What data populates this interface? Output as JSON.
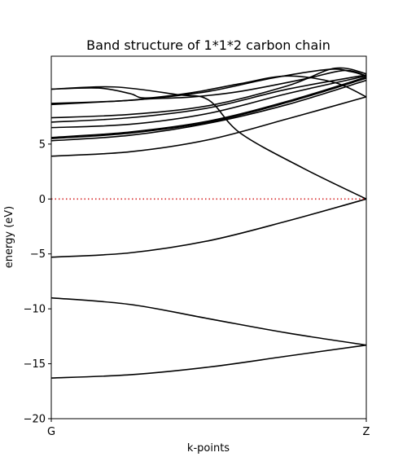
{
  "chart_data": {
    "type": "line",
    "title": "Band structure of 1*1*2 carbon chain",
    "xlabel": "k-points",
    "ylabel": "energy (eV)",
    "xlim": [
      0,
      1
    ],
    "ylim": [
      -20,
      13
    ],
    "x_ticks": [
      {
        "value": 0,
        "label": "G"
      },
      {
        "value": 1,
        "label": "Z"
      }
    ],
    "y_ticks": [
      -20,
      -15,
      -10,
      -5,
      0,
      5
    ],
    "fermi_level": 0,
    "fermi_color": "#d62728",
    "line_color": "#000000",
    "series": [
      {
        "x": [
          0,
          0.25,
          0.5,
          0.75,
          1
        ],
        "y": [
          -16.3,
          -16.0,
          -15.3,
          -14.3,
          -13.3
        ]
      },
      {
        "x": [
          0,
          0.25,
          0.5,
          0.75,
          1
        ],
        "y": [
          -9.0,
          -9.6,
          -10.9,
          -12.2,
          -13.3
        ]
      },
      {
        "x": [
          0,
          0.25,
          0.5,
          0.75,
          1
        ],
        "y": [
          -5.3,
          -4.9,
          -3.8,
          -2.0,
          0.0
        ]
      },
      {
        "x": [
          0,
          0.2,
          0.4,
          0.5,
          0.6,
          0.8,
          1
        ],
        "y": [
          10.0,
          10.2,
          9.5,
          9.0,
          6.0,
          2.8,
          0.0
        ]
      },
      {
        "x": [
          0,
          0.25,
          0.5,
          0.75,
          1
        ],
        "y": [
          3.9,
          4.3,
          5.4,
          7.3,
          9.3
        ]
      },
      {
        "x": [
          0,
          0.25,
          0.5,
          0.75,
          1
        ],
        "y": [
          5.3,
          5.8,
          6.9,
          8.6,
          10.8
        ]
      },
      {
        "x": [
          0,
          0.25,
          0.5,
          0.75,
          1
        ],
        "y": [
          5.5,
          6.0,
          7.0,
          8.8,
          11.0
        ]
      },
      {
        "x": [
          0,
          0.25,
          0.5,
          0.75,
          1
        ],
        "y": [
          5.6,
          6.1,
          7.1,
          8.9,
          11.1
        ]
      },
      {
        "x": [
          0,
          0.25,
          0.5,
          0.75,
          1
        ],
        "y": [
          6.5,
          6.8,
          7.8,
          9.6,
          11.2
        ]
      },
      {
        "x": [
          0,
          0.25,
          0.5,
          0.75,
          1
        ],
        "y": [
          7.0,
          7.4,
          8.3,
          10.0,
          11.3
        ]
      },
      {
        "x": [
          0,
          0.25,
          0.5,
          0.75,
          0.9,
          1
        ],
        "y": [
          7.4,
          7.7,
          8.5,
          10.3,
          11.9,
          11.4
        ]
      },
      {
        "x": [
          0,
          0.2,
          0.3,
          0.45,
          0.6,
          0.8,
          0.93,
          1
        ],
        "y": [
          8.7,
          8.9,
          9.1,
          9.3,
          9.8,
          10.9,
          11.7,
          11.2
        ]
      },
      {
        "x": [
          0,
          0.15,
          0.25,
          0.3,
          0.45,
          0.6,
          0.75,
          0.9,
          1
        ],
        "y": [
          10.0,
          10.1,
          9.6,
          9.2,
          9.7,
          10.5,
          11.2,
          10.6,
          9.3
        ]
      },
      {
        "x": [
          0,
          0.2,
          0.3,
          0.5,
          0.7,
          0.88,
          0.95,
          1
        ],
        "y": [
          8.6,
          8.9,
          9.1,
          9.8,
          11.0,
          11.8,
          11.6,
          11.2
        ]
      }
    ]
  }
}
